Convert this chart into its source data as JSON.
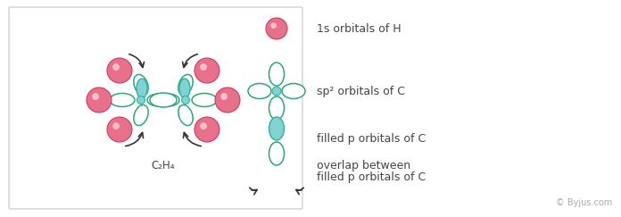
{
  "bg_color": "#ffffff",
  "border_color": "#cccccc",
  "pink_face": "#e8708a",
  "pink_edge": "#c84060",
  "teal_face": "#7dd4d0",
  "teal_edge": "#3aada8",
  "green_edge": "#2aaa70",
  "text_color": "#444444",
  "arrow_color": "#333333",
  "label_1": "1s orbitals of H",
  "label_2": "sp² orbitals of C",
  "label_3": "filled p orbitals of C",
  "label_4a": "overlap between",
  "label_4b": "filled p orbitals of C",
  "label_c2h4": "C₂H₄",
  "label_copyright": "© Byjus.com",
  "fig_width": 6.96,
  "fig_height": 2.43
}
